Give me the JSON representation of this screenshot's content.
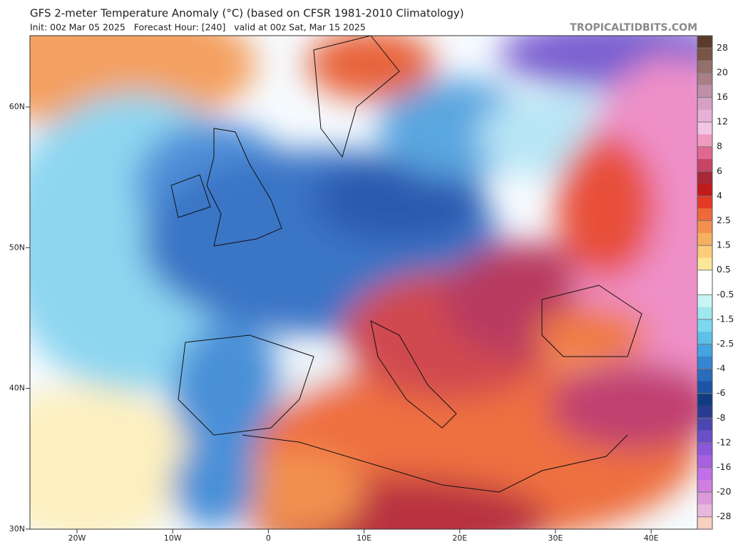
{
  "header": {
    "title": "GFS 2-meter Temperature Anomaly (°C) (based on CFSR 1981-2010 Climatology)",
    "subtitle": "Init: 00z Mar 05 2025   Forecast Hour: [240]   valid at 00z Sat, Mar 15 2025",
    "source": "TROPICALTIDBITS.COM"
  },
  "colorbar": {
    "labels": [
      28,
      20,
      16,
      12,
      8,
      6,
      4,
      2.5,
      1.5,
      0.5,
      -0.5,
      -1.5,
      -2.5,
      -4,
      -6,
      -8,
      -12,
      -16,
      -20,
      -28
    ]
  },
  "map": {
    "lat_labels": [
      "60N",
      "50N",
      "40N",
      "30N"
    ],
    "lon_labels": [
      "20W",
      "10W",
      "0",
      "10E",
      "20E",
      "30E",
      "40E"
    ]
  }
}
